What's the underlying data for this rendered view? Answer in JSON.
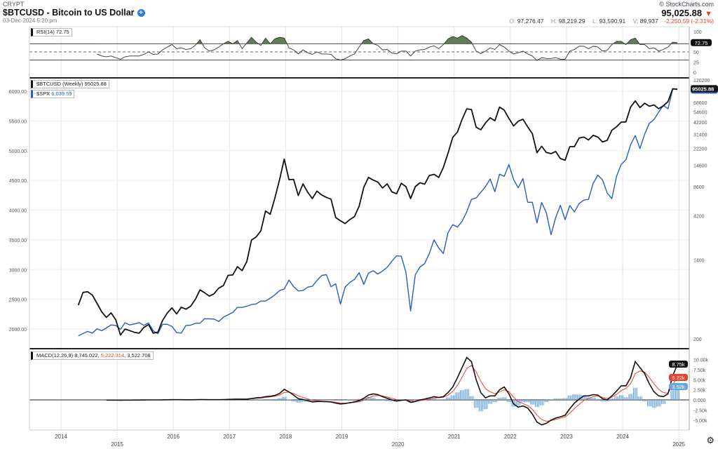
{
  "header": {
    "exchange": "CRYPT",
    "title": "$BTCUSD - Bitcoin to US Dollar",
    "plus_icon": "plus-circle-icon",
    "datetime": "03-Dec-2024 5:20:pm",
    "brand": "© StockCharts.com",
    "last": "95,025.88",
    "direction": "down",
    "open_label": "O:",
    "open": "97,276.47",
    "high_label": "H:",
    "high": "98,219.29",
    "low_label": "L:",
    "low": "93,590.91",
    "volume_label": "V:",
    "volume": "89,937",
    "change": "-2,250.59 (-2.31%)"
  },
  "colors": {
    "btc": "#111111",
    "spx": "#2a5cc0",
    "signal": "#e8412c",
    "histogram": "#6aa6d8",
    "overbought_fill": "#5f7d57",
    "oversold_fill": "#c0392b"
  },
  "chart_data": [
    {
      "type": "line",
      "panel": "RSI",
      "legend": "RSI(14) 72.75",
      "last_label": "72.75",
      "yticks": [
        "100",
        "50",
        "25",
        "0"
      ],
      "ylim": [
        0,
        100
      ],
      "reference_lines": [
        30,
        50,
        70
      ],
      "start": "2014-08",
      "frequency": "monthly",
      "values": [
        45,
        40,
        38,
        40,
        36,
        32,
        38,
        40,
        40,
        40,
        44,
        50,
        44,
        45,
        55,
        62,
        68,
        58,
        60,
        56,
        58,
        66,
        80,
        60,
        52,
        55,
        62,
        70,
        76,
        70,
        78,
        58,
        72,
        86,
        74,
        66,
        84,
        70,
        82,
        86,
        84,
        60,
        55,
        45,
        55,
        48,
        44,
        50,
        45,
        45,
        44,
        33,
        30,
        33,
        40,
        45,
        62,
        78,
        82,
        70,
        66,
        55,
        56,
        47,
        45,
        52,
        52,
        40,
        52,
        55,
        56,
        62,
        65,
        58,
        68,
        82,
        88,
        84,
        90,
        84,
        74,
        52,
        46,
        52,
        60,
        56,
        68,
        62,
        52,
        45,
        48,
        52,
        45,
        40,
        29,
        36,
        34,
        34,
        36,
        32,
        32,
        52,
        56,
        64,
        64,
        58,
        64,
        62,
        52,
        54,
        68,
        76,
        76,
        68,
        80,
        84,
        68,
        68,
        58,
        60,
        52,
        56,
        62,
        74,
        72.75
      ]
    },
    {
      "type": "line",
      "panel": "price",
      "xticks": [
        "2014",
        "2015",
        "2016",
        "2017",
        "2018",
        "2019",
        "2020",
        "2021",
        "2022",
        "2023",
        "2024",
        "2025"
      ],
      "series": [
        {
          "name": "$BTCUSD (Weekly)",
          "legend": "$BTCUSD (Weekly) 95025.88",
          "last_label": "95025.88",
          "axis": "right",
          "scale": "log",
          "yticks": [
            "120200",
            "68600",
            "54600",
            "42200",
            "31400",
            "22200",
            "14600",
            "8600",
            "4200",
            "1400",
            "200"
          ],
          "ylim": [
            200,
            120200
          ],
          "start": "2014-04",
          "frequency": "monthly",
          "values": [
            460,
            630,
            640,
            590,
            480,
            390,
            340,
            380,
            320,
            220,
            255,
            245,
            235,
            230,
            265,
            285,
            230,
            236,
            315,
            378,
            430,
            370,
            437,
            416,
            448,
            530,
            670,
            625,
            575,
            610,
            700,
            745,
            960,
            970,
            1190,
            1080,
            1350,
            2300,
            2480,
            2875,
            4700,
            4340,
            6470,
            10200,
            17000,
            10200,
            10300,
            6900,
            9200,
            7500,
            6400,
            7700,
            7000,
            6600,
            6300,
            4000,
            3700,
            3450,
            3800,
            4100,
            5300,
            8500,
            10800,
            10100,
            9600,
            8300,
            9200,
            7550,
            7200,
            9350,
            8600,
            6400,
            8600,
            9450,
            9140,
            11300,
            11650,
            10780,
            13800,
            19700,
            29000,
            33100,
            45200,
            58800,
            57700,
            37300,
            35000,
            41500,
            47100,
            43800,
            61300,
            57000,
            46300,
            38500,
            43200,
            45500,
            37700,
            31800,
            19900,
            23300,
            20000,
            19400,
            20500,
            17200,
            16500,
            23100,
            23100,
            28500,
            29200,
            27200,
            30500,
            29200,
            25900,
            27000,
            34600,
            37700,
            42300,
            42600,
            61200,
            71300,
            60600,
            67500,
            62700,
            64600,
            59000,
            63300,
            70300,
            96400,
            95025.88
          ]
        },
        {
          "name": "$SPX",
          "legend_symbol": "$SPX",
          "legend_value": "6,039.59",
          "axis": "left",
          "scale": "linear",
          "yticks": [
            "6000.00",
            "5500.00",
            "5000.00",
            "4500.00",
            "4000.00",
            "3500.00",
            "3000.00",
            "2500.00",
            "2000.00"
          ],
          "ylim": [
            1800,
            6150
          ],
          "start": "2014-04",
          "frequency": "monthly",
          "values": [
            1884,
            1924,
            1960,
            1931,
            2003,
            1972,
            2018,
            2068,
            2059,
            1995,
            2105,
            2068,
            2086,
            2107,
            2063,
            2104,
            1972,
            1920,
            2079,
            2080,
            2044,
            1940,
            1932,
            2060,
            2065,
            2097,
            2099,
            2174,
            2171,
            2168,
            2126,
            2199,
            2239,
            2279,
            2364,
            2363,
            2384,
            2412,
            2423,
            2470,
            2472,
            2519,
            2575,
            2648,
            2674,
            2824,
            2714,
            2641,
            2648,
            2705,
            2718,
            2816,
            2902,
            2914,
            2712,
            2760,
            2420,
            2704,
            2784,
            2834,
            2946,
            2752,
            2942,
            2980,
            2926,
            2977,
            3038,
            3141,
            3231,
            3226,
            2954,
            2305,
            2912,
            3044,
            3100,
            3271,
            3500,
            3363,
            3270,
            3622,
            3756,
            3714,
            3811,
            3973,
            4181,
            4204,
            4298,
            4395,
            4523,
            4308,
            4605,
            4567,
            4766,
            4516,
            4374,
            4530,
            4132,
            4132,
            3785,
            4130,
            3955,
            3586,
            3872,
            4080,
            3840,
            4077,
            3970,
            4109,
            4169,
            4180,
            4450,
            4589,
            4508,
            4288,
            4194,
            4568,
            4770,
            4846,
            5096,
            5254,
            5036,
            5278,
            5460,
            5522,
            5648,
            5762,
            5705,
            6032,
            6039.59
          ]
        }
      ]
    },
    {
      "type": "line",
      "panel": "MACD",
      "legend_name": "MACD(12,26,9)",
      "legend_macd": "8,745.022",
      "legend_signal": "5,222.314",
      "legend_hist": "3,522.708",
      "last_labels": {
        "macd": "8.75k",
        "signal": "5.22k",
        "histogram": "3.52k"
      },
      "yticks": [
        "10.00k",
        "7.50k",
        "5.00k",
        "2.50k",
        "0.000",
        "-2.50k",
        "-5.00k"
      ],
      "ylim_thousands": [
        -7,
        11
      ],
      "start": "2014-10",
      "frequency": "monthly",
      "macd_thousands": [
        -0.05,
        -0.05,
        -0.06,
        -0.07,
        -0.06,
        -0.05,
        -0.04,
        -0.03,
        -0.02,
        0,
        0,
        0,
        0.01,
        0.03,
        0.05,
        0.05,
        0.05,
        0.04,
        0.04,
        0.05,
        0.08,
        0.08,
        0.06,
        0.05,
        0.06,
        0.08,
        0.12,
        0.15,
        0.2,
        0.2,
        0.2,
        0.35,
        0.5,
        0.55,
        0.8,
        0.9,
        1.1,
        1.6,
        2.6,
        2.0,
        1.2,
        0.3,
        0.1,
        -0.2,
        -0.5,
        -0.4,
        -0.4,
        -0.45,
        -0.5,
        -0.8,
        -1.0,
        -0.9,
        -0.7,
        -0.5,
        -0.2,
        0.4,
        1.2,
        1.5,
        1.3,
        0.8,
        0.4,
        0,
        -0.3,
        -0.1,
        0,
        -0.6,
        -0.4,
        0,
        0.2,
        0.5,
        0.8,
        0.6,
        0.8,
        1.8,
        3.2,
        5.5,
        8.0,
        10.5,
        9.5,
        5.0,
        1.8,
        0.5,
        1.0,
        1.0,
        2.5,
        3.2,
        1.5,
        -1.0,
        -1.8,
        -1.5,
        -2.0,
        -3.5,
        -5.5,
        -6.2,
        -5.8,
        -5.0,
        -4.5,
        -4.2,
        -3.8,
        -2.2,
        -0.8,
        0.2,
        1.0,
        1.0,
        1.3,
        1.2,
        0.3,
        0,
        1.0,
        2.2,
        3.5,
        3.5,
        5.5,
        9.5,
        8.0,
        6.5,
        4.0,
        2.0,
        1.0,
        0.8,
        1.5,
        6.0,
        8.745
      ]
    }
  ],
  "footer": {
    "settings_icon": "gear-icon"
  }
}
